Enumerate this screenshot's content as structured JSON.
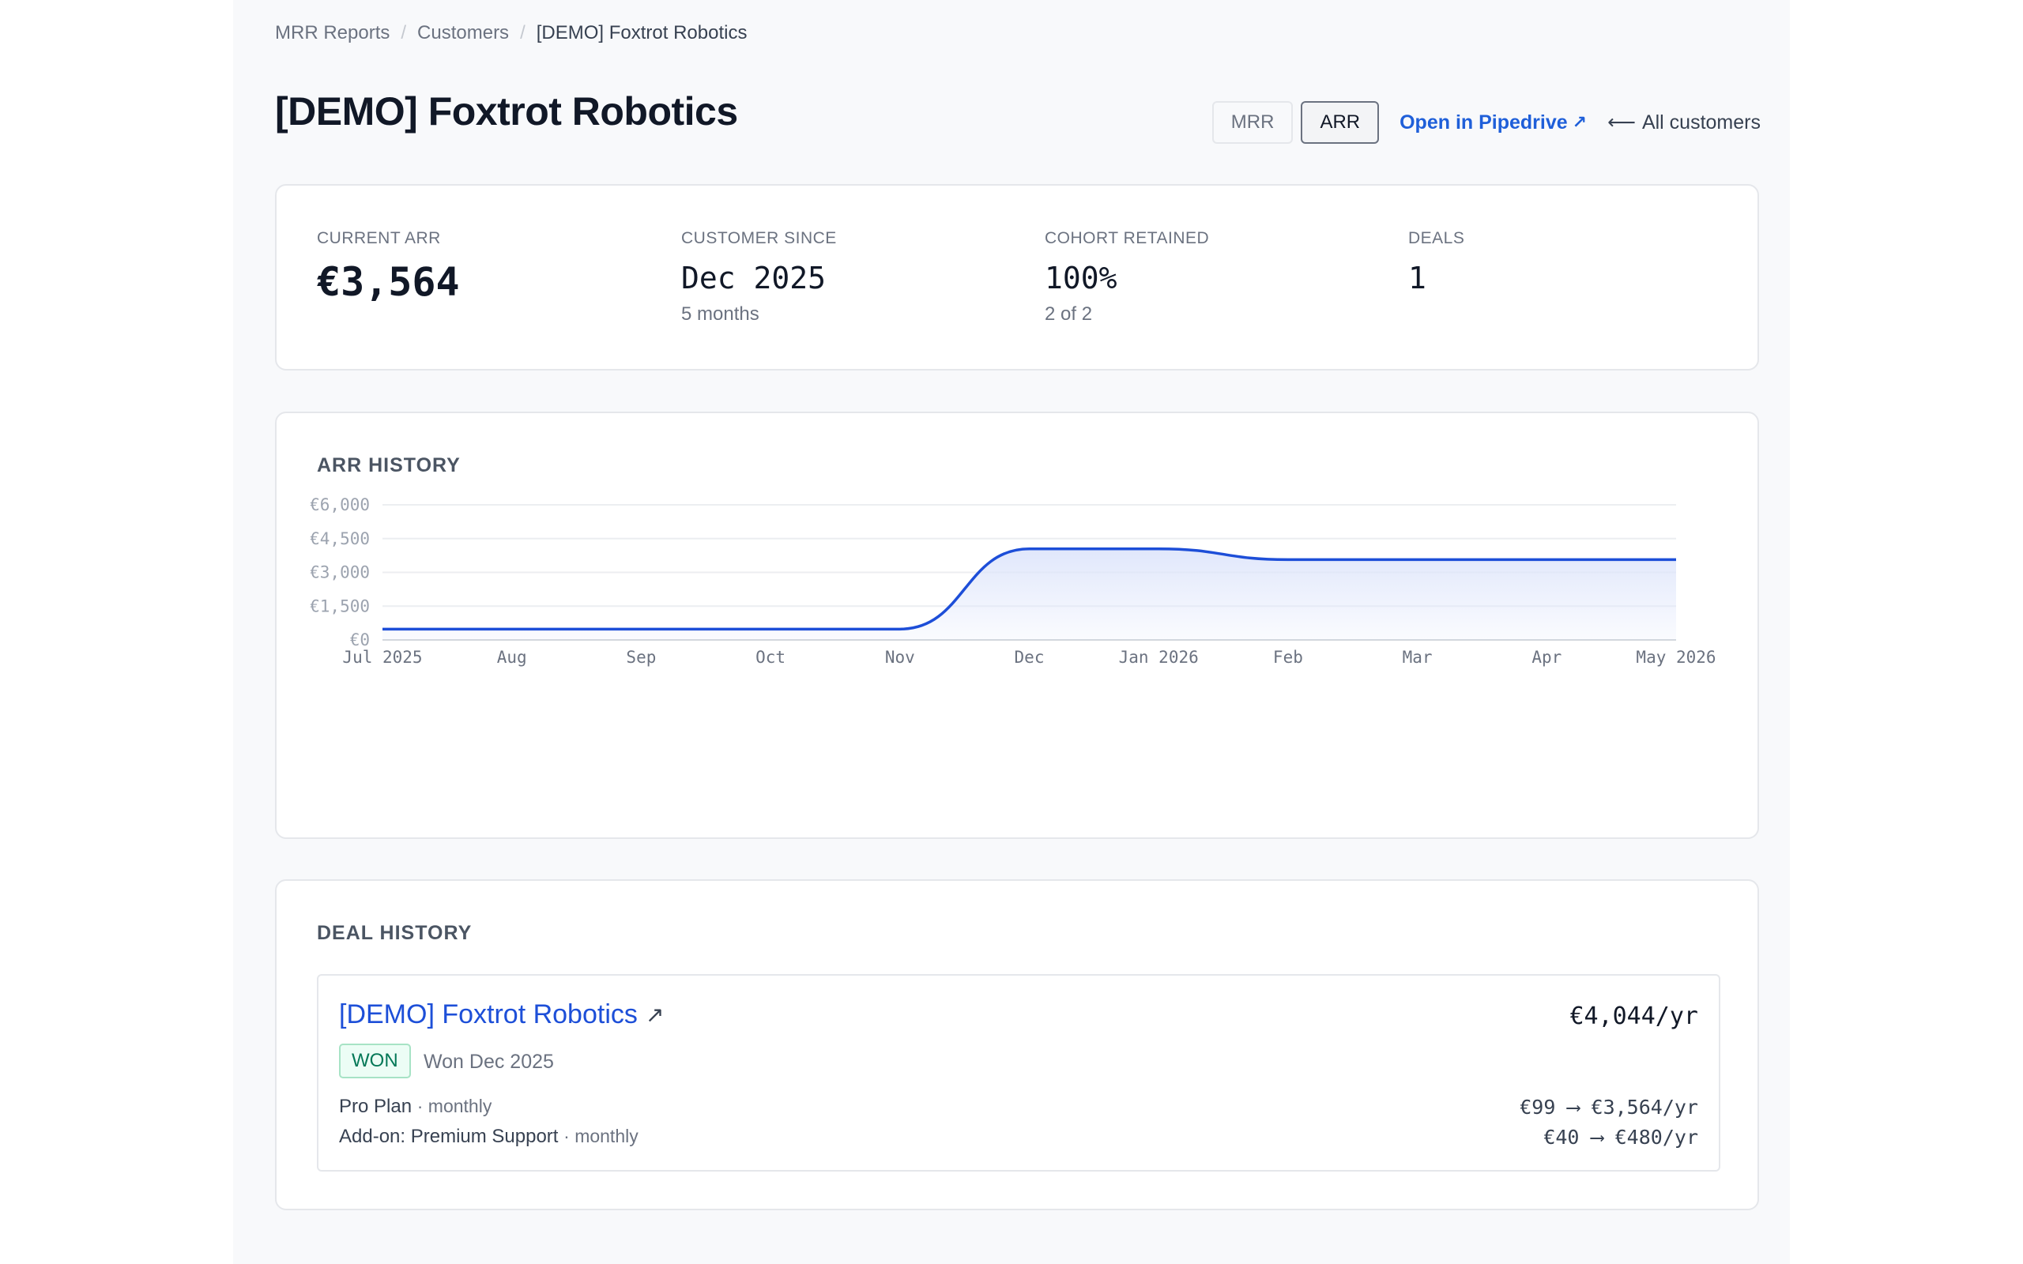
{
  "breadcrumb": [
    {
      "label": "MRR Reports"
    },
    {
      "label": "Customers"
    },
    {
      "label": "[DEMO] Foxtrot Robotics"
    }
  ],
  "breadcrumb_separator": "/",
  "page_title": "[DEMO] Foxtrot Robotics",
  "toggle": {
    "options": [
      "MRR",
      "ARR"
    ],
    "selected": "ARR"
  },
  "links": {
    "pipedrive": "Open in Pipedrive",
    "back": "All customers"
  },
  "icons": {
    "external": "arrow-up-right-icon",
    "back": "arrow-left-icon"
  },
  "stats": {
    "current_arr": {
      "label": "CURRENT ARR",
      "value": "€3,564"
    },
    "customer_since": {
      "label": "CUSTOMER SINCE",
      "value": "Dec 2025",
      "sub": "5 months"
    },
    "cohort_retained": {
      "label": "COHORT RETAINED",
      "value": "100%",
      "sub": "2 of 2"
    },
    "deals": {
      "label": "DEALS",
      "value": "1"
    }
  },
  "arr_history": {
    "heading": "ARR HISTORY",
    "chart_data": {
      "type": "area",
      "x": [
        "Jul 2025",
        "Aug",
        "Sep",
        "Oct",
        "Nov",
        "Dec",
        "Jan 2026",
        "Feb",
        "Mar",
        "Apr",
        "May 2026"
      ],
      "series": [
        {
          "values": [
            480,
            480,
            480,
            480,
            480,
            4044,
            4044,
            3564,
            3564,
            3564,
            3564
          ]
        }
      ],
      "y_ticks": [
        "€0",
        "€1,500",
        "€3,000",
        "€4,500",
        "€6,000"
      ],
      "ylim": [
        0,
        6000
      ],
      "grid": true,
      "line_color": "#1d4ed8",
      "fill_color": "#dfe6fb"
    }
  },
  "deal_history": {
    "heading": "DEAL HISTORY",
    "deals": [
      {
        "name": "[DEMO] Foxtrot Robotics",
        "total": "€4,044/yr",
        "status": "WON",
        "won_date": "Won Dec 2025",
        "line_items": [
          {
            "name": "Pro Plan",
            "frequency": "· monthly",
            "price": "€99 ⟶ €3,564/yr"
          },
          {
            "name": "Add-on: Premium Support",
            "frequency": "· monthly",
            "price": "€40 ⟶ €480/yr"
          }
        ]
      }
    ]
  },
  "colors": {
    "accent": "#1f5fd9",
    "won_green": "#047857",
    "background": "#f8f9fb"
  }
}
